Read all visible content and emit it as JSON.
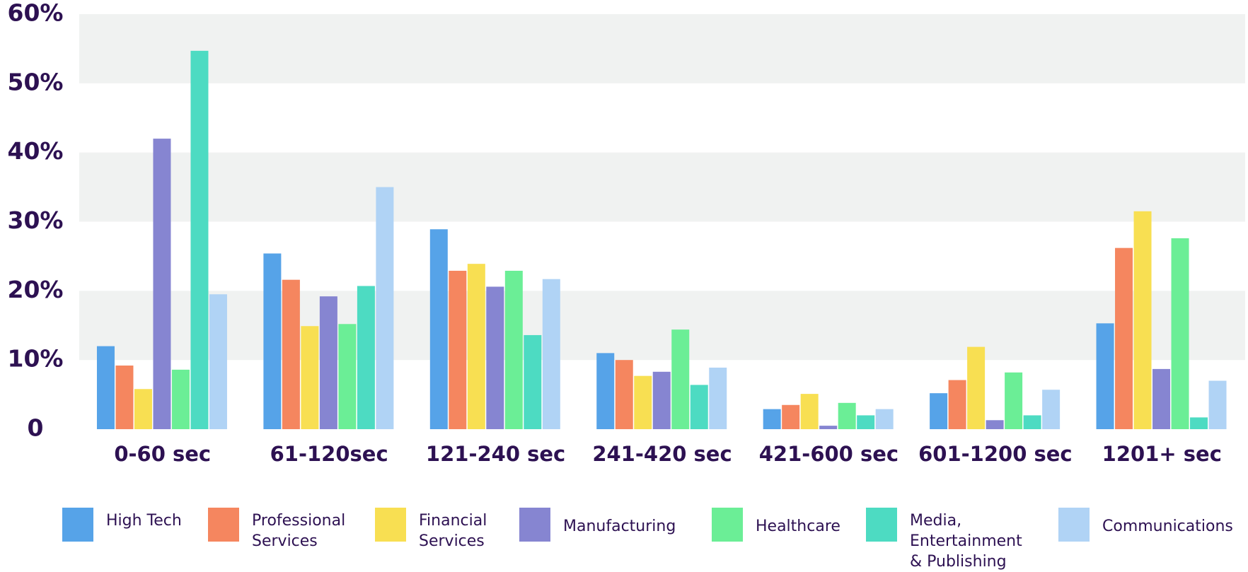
{
  "chart_data": {
    "type": "bar",
    "categories": [
      "0-60 sec",
      "61-120sec",
      "121-240 sec",
      "241-420 sec",
      "421-600 sec",
      "601-1200 sec",
      "1201+ sec"
    ],
    "series": [
      {
        "name": "High Tech",
        "color": "#56a3e8",
        "values": [
          12,
          25.4,
          28.9,
          11,
          2.9,
          5.2,
          15.3
        ]
      },
      {
        "name": "Professional Services",
        "color": "#f5865f",
        "values": [
          9.2,
          21.6,
          22.9,
          10,
          3.5,
          7.1,
          26.2
        ]
      },
      {
        "name": "Financial Services",
        "color": "#f8df52",
        "values": [
          5.8,
          14.9,
          23.9,
          7.7,
          5.1,
          11.9,
          31.5
        ]
      },
      {
        "name": "Manufacturing",
        "color": "#8685d1",
        "values": [
          42,
          19.2,
          20.6,
          8.3,
          0.5,
          1.3,
          8.7
        ]
      },
      {
        "name": "Healthcare",
        "color": "#6bee96",
        "values": [
          8.6,
          15.2,
          22.9,
          14.4,
          3.8,
          8.2,
          27.6
        ]
      },
      {
        "name": "Media, Entertainment & Publishing",
        "color": "#4ddbc2",
        "values": [
          54.7,
          20.7,
          13.6,
          6.4,
          2,
          2,
          1.7
        ]
      },
      {
        "name": "Communications",
        "color": "#b0d3f5",
        "values": [
          19.5,
          35,
          21.7,
          8.9,
          2.9,
          5.7,
          7
        ]
      }
    ],
    "ylim": [
      0,
      60
    ],
    "yticks": [
      0,
      {
        "value": 10,
        "label": "10%"
      },
      {
        "value": 20,
        "label": "20%"
      },
      {
        "value": 30,
        "label": "30%"
      },
      {
        "value": 40,
        "label": "40%"
      },
      {
        "value": 50,
        "label": "50%"
      },
      {
        "value": 60,
        "label": "60%"
      }
    ],
    "grid": true
  }
}
